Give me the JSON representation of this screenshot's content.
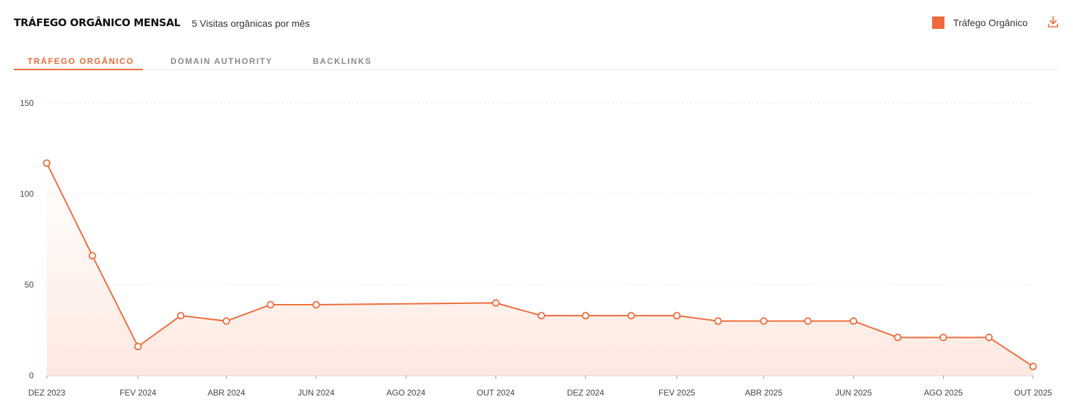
{
  "header": {
    "title": "TRÁFEGO ORGÂNICO MENSAL",
    "subtitle": "5 Visitas orgânicas por mês",
    "legend_label": "Tráfego Orgânico",
    "download_icon": "download-icon"
  },
  "tabs": [
    {
      "label": "TRÁFEGO ORGÂNICO",
      "active": true
    },
    {
      "label": "DOMAIN AUTHORITY",
      "active": false
    },
    {
      "label": "BACKLINKS",
      "active": false
    }
  ],
  "colors": {
    "accent": "#ee6a3a",
    "grid": "#e8e8e8",
    "fill_top": "#fde6dd"
  },
  "chart_data": {
    "type": "area",
    "series": [
      {
        "name": "Tráfego Orgânico",
        "points": [
          {
            "x": "2023-12-01",
            "y": 117
          },
          {
            "x": "2024-01-01",
            "y": 66
          },
          {
            "x": "2024-02-01",
            "y": 16
          },
          {
            "x": "2024-03-01",
            "y": 33
          },
          {
            "x": "2024-04-01",
            "y": 30
          },
          {
            "x": "2024-05-01",
            "y": 39
          },
          {
            "x": "2024-06-01",
            "y": 39
          },
          {
            "x": "2024-10-01",
            "y": 40
          },
          {
            "x": "2024-11-01",
            "y": 33
          },
          {
            "x": "2024-12-01",
            "y": 33
          },
          {
            "x": "2025-01-01",
            "y": 33
          },
          {
            "x": "2025-02-01",
            "y": 33
          },
          {
            "x": "2025-03-01",
            "y": 30
          },
          {
            "x": "2025-04-01",
            "y": 30
          },
          {
            "x": "2025-05-01",
            "y": 30
          },
          {
            "x": "2025-06-01",
            "y": 30
          },
          {
            "x": "2025-07-01",
            "y": 21
          },
          {
            "x": "2025-08-01",
            "y": 21
          },
          {
            "x": "2025-09-01",
            "y": 21
          },
          {
            "x": "2025-10-01",
            "y": 5
          }
        ]
      }
    ],
    "xlim": [
      "2023-12-01",
      "2025-10-01"
    ],
    "ylim": [
      0,
      150
    ],
    "y_ticks": [
      0,
      50,
      100,
      150
    ],
    "x_ticks": [
      {
        "date": "2023-12-01",
        "label": "DEZ 2023"
      },
      {
        "date": "2024-02-01",
        "label": "FEV 2024"
      },
      {
        "date": "2024-04-01",
        "label": "ABR 2024"
      },
      {
        "date": "2024-06-01",
        "label": "JUN 2024"
      },
      {
        "date": "2024-08-01",
        "label": "AGO 2024"
      },
      {
        "date": "2024-10-01",
        "label": "OUT 2024"
      },
      {
        "date": "2024-12-01",
        "label": "DEZ 2024"
      },
      {
        "date": "2025-02-01",
        "label": "FEV 2025"
      },
      {
        "date": "2025-04-01",
        "label": "ABR 2025"
      },
      {
        "date": "2025-06-01",
        "label": "JUN 2025"
      },
      {
        "date": "2025-08-01",
        "label": "AGO 2025"
      },
      {
        "date": "2025-10-01",
        "label": "OUT 2025"
      }
    ],
    "grid": true,
    "legend": "top-right"
  }
}
